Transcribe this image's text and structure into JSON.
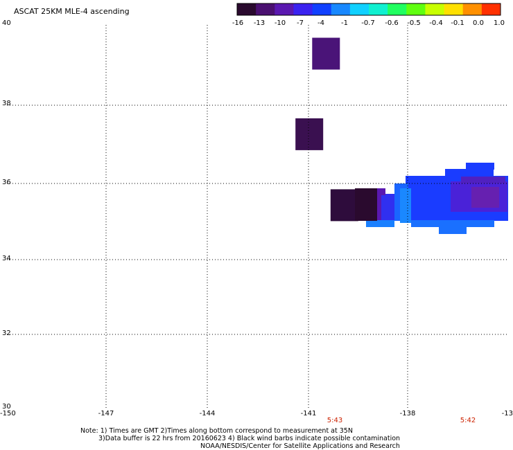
{
  "title": "ASCAT 25KM MLE-4 ascending",
  "colorbar": {
    "colors": [
      "#2a0a2e",
      "#4a1070",
      "#5a18b0",
      "#3a22f0",
      "#1040ff",
      "#1888ff",
      "#10d0ff",
      "#10f0d0",
      "#20ff60",
      "#60ff10",
      "#c8ff00",
      "#ffe000",
      "#ff9000",
      "#ff3000"
    ],
    "labels": [
      "-16",
      "-13",
      "-10",
      "-7",
      "-4",
      "-1",
      "-0.7",
      "-0.6",
      "-0.5",
      "-0.4",
      "-0.1",
      "0.0",
      "1.0"
    ]
  },
  "lat_labels": [
    "40",
    "38",
    "36",
    "34",
    "32",
    "30"
  ],
  "lon_labels": [
    "-150",
    "-147",
    "-144",
    "-141",
    "-138",
    "-13"
  ],
  "time_labels": [
    "5:43",
    "5:42"
  ],
  "notes": [
    "Note: 1) Times are GMT 2)Times along bottom correspond to measurement at 35N",
    "3)Data buffer is 22 hrs from 20160623 4) Black wind barbs indicate possible contamination",
    "NOAA/NESDIS/Center for Satellite Applications and Research"
  ],
  "data_cells": [
    {
      "lon": -140.45,
      "lat": 39.25,
      "color": "#4a1478"
    },
    {
      "lon": -140.95,
      "lat": 37.15,
      "color": "#3a1050"
    },
    {
      "lon": -139.9,
      "lat": 35.3,
      "color": "#2e0c3c"
    }
  ]
}
